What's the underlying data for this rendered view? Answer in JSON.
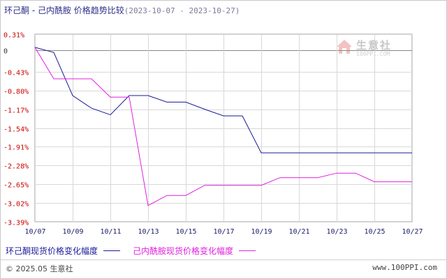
{
  "title": {
    "main": "环己酮 - 己内酰胺 价格趋势比较",
    "range": "(2023-10-07 - 2023-10-27)"
  },
  "watermark": {
    "name": "生意社",
    "url": "100PPI.COM"
  },
  "footer": {
    "copyright": "© 2025.05 生意社",
    "url": "www.100PPI.com"
  },
  "colors": {
    "series1": "#1a1a99",
    "series2": "#e020e0",
    "grid": "#d8d8d8",
    "zero_line": "#888888",
    "ytick": "#cc0000",
    "xtick": "#1a1a66"
  },
  "chart_data": {
    "type": "line",
    "ylim": [
      -3.39,
      0.31
    ],
    "yticks": [
      {
        "value": 0.31,
        "label": "0.31%"
      },
      {
        "value": 0,
        "label": "0"
      },
      {
        "value": -0.43,
        "label": "-0.43%"
      },
      {
        "value": -0.8,
        "label": "-0.80%"
      },
      {
        "value": -1.17,
        "label": "-1.17%"
      },
      {
        "value": -1.54,
        "label": "-1.54%"
      },
      {
        "value": -1.91,
        "label": "-1.91%"
      },
      {
        "value": -2.28,
        "label": "-2.28%"
      },
      {
        "value": -2.65,
        "label": "-2.65%"
      },
      {
        "value": -3.02,
        "label": "-3.02%"
      },
      {
        "value": -3.39,
        "label": "-3.39%"
      }
    ],
    "x": [
      "10/07",
      "10/08",
      "10/09",
      "10/10",
      "10/11",
      "10/12",
      "10/13",
      "10/14",
      "10/15",
      "10/16",
      "10/17",
      "10/18",
      "10/19",
      "10/20",
      "10/21",
      "10/22",
      "10/23",
      "10/24",
      "10/25",
      "10/26",
      "10/27"
    ],
    "xtick_labels": [
      "10/07",
      "10/09",
      "10/11",
      "10/13",
      "10/15",
      "10/17",
      "10/19",
      "10/21",
      "10/23",
      "10/25",
      "10/27"
    ],
    "series": [
      {
        "name": "环己酮现货价格变化幅度",
        "values": [
          0.05,
          -0.05,
          -0.9,
          -1.15,
          -1.28,
          -0.9,
          -0.9,
          -1.03,
          -1.03,
          -1.17,
          -1.3,
          -1.3,
          -2.03,
          -2.03,
          -2.03,
          -2.03,
          -2.03,
          -2.03,
          -2.03,
          -2.03,
          -2.03
        ]
      },
      {
        "name": "己内酰胺现货价格变化幅度",
        "values": [
          0.05,
          -0.57,
          -0.57,
          -0.57,
          -0.93,
          -0.93,
          -3.07,
          -2.87,
          -2.87,
          -2.67,
          -2.67,
          -2.67,
          -2.67,
          -2.52,
          -2.52,
          -2.52,
          -2.43,
          -2.43,
          -2.6,
          -2.6,
          -2.6
        ]
      }
    ]
  }
}
